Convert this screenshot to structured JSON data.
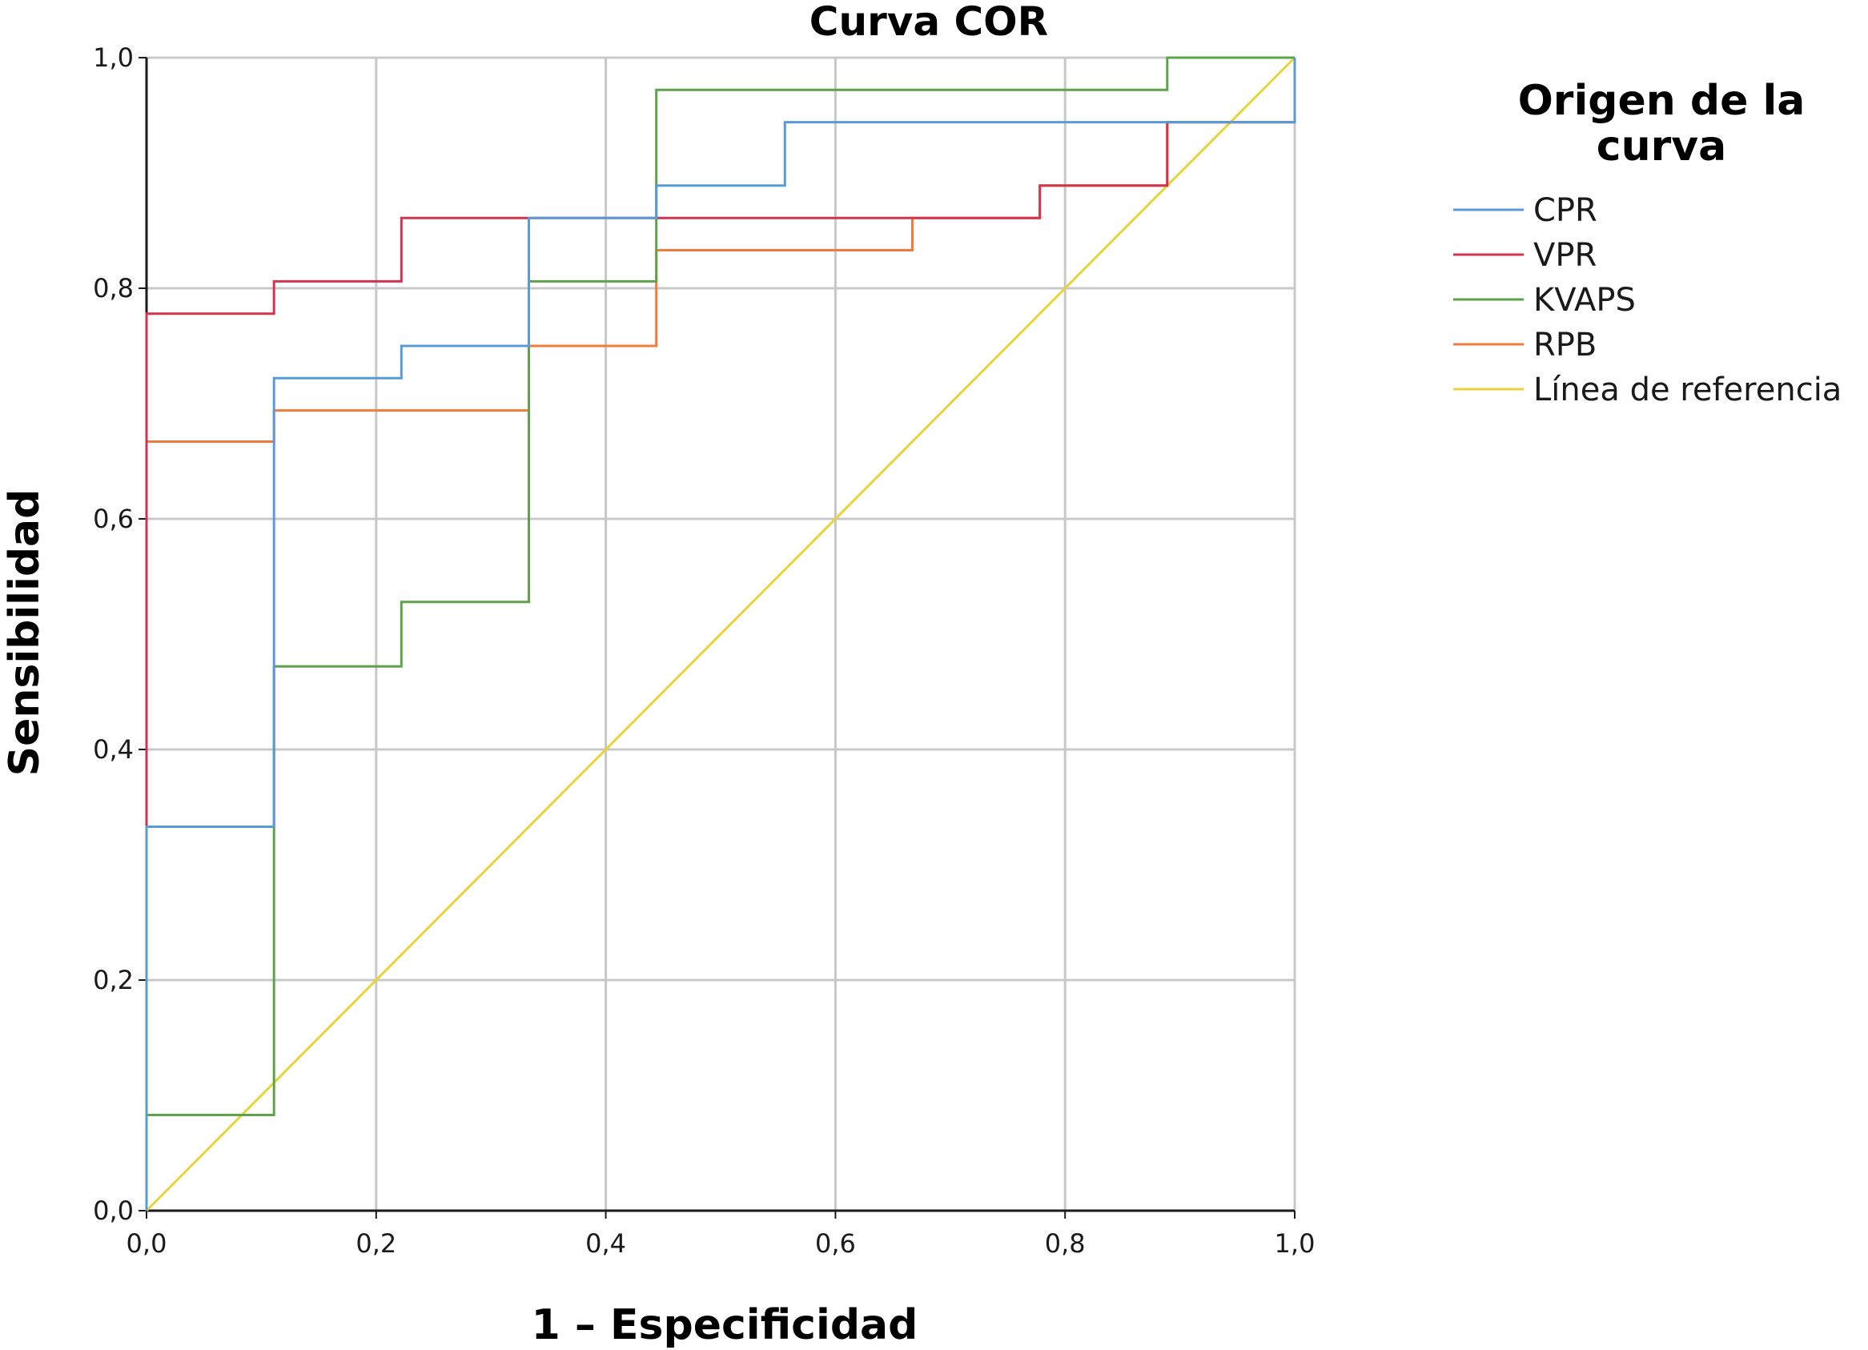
{
  "chart_data": {
    "type": "line",
    "title": "Curva COR",
    "xlabel": "1 – Especificidad",
    "ylabel": "Sensibilidad",
    "xlim": [
      0,
      1
    ],
    "ylim": [
      0,
      1
    ],
    "x_ticks": [
      "0,0",
      "0,2",
      "0,4",
      "0,6",
      "0,8",
      "1,0"
    ],
    "y_ticks": [
      "0,0",
      "0,2",
      "0,4",
      "0,6",
      "0,8",
      "1,0"
    ],
    "grid": true,
    "legend_title_lines": [
      "Origen de la",
      "curva"
    ],
    "legend_position": "right",
    "series": [
      {
        "name": "CPR",
        "color": "#5b9bd5",
        "points": [
          [
            0,
            0
          ],
          [
            0,
            0.333
          ],
          [
            0.111,
            0.333
          ],
          [
            0.111,
            0.722
          ],
          [
            0.222,
            0.722
          ],
          [
            0.222,
            0.75
          ],
          [
            0.333,
            0.75
          ],
          [
            0.333,
            0.861
          ],
          [
            0.444,
            0.861
          ],
          [
            0.444,
            0.889
          ],
          [
            0.556,
            0.889
          ],
          [
            0.556,
            0.944
          ],
          [
            1.0,
            0.944
          ],
          [
            1.0,
            1.0
          ]
        ]
      },
      {
        "name": "VPR",
        "color": "#d2334f",
        "points": [
          [
            0,
            0
          ],
          [
            0,
            0.778
          ],
          [
            0.111,
            0.778
          ],
          [
            0.111,
            0.806
          ],
          [
            0.222,
            0.806
          ],
          [
            0.222,
            0.861
          ],
          [
            0.778,
            0.861
          ],
          [
            0.778,
            0.889
          ],
          [
            0.889,
            0.889
          ],
          [
            0.889,
            0.944
          ],
          [
            1.0,
            0.944
          ],
          [
            1.0,
            1.0
          ]
        ]
      },
      {
        "name": "KVAPS",
        "color": "#5ea34a",
        "points": [
          [
            0,
            0
          ],
          [
            0,
            0.083
          ],
          [
            0.111,
            0.083
          ],
          [
            0.111,
            0.472
          ],
          [
            0.222,
            0.472
          ],
          [
            0.222,
            0.528
          ],
          [
            0.333,
            0.528
          ],
          [
            0.333,
            0.806
          ],
          [
            0.444,
            0.806
          ],
          [
            0.444,
            0.972
          ],
          [
            0.889,
            0.972
          ],
          [
            0.889,
            1.0
          ],
          [
            1.0,
            1.0
          ]
        ]
      },
      {
        "name": "RPB",
        "color": "#f07c3c",
        "points": [
          [
            0,
            0
          ],
          [
            0,
            0.667
          ],
          [
            0.111,
            0.667
          ],
          [
            0.111,
            0.694
          ],
          [
            0.333,
            0.694
          ],
          [
            0.333,
            0.75
          ],
          [
            0.444,
            0.75
          ],
          [
            0.444,
            0.833
          ],
          [
            0.667,
            0.833
          ],
          [
            0.667,
            0.861
          ],
          [
            0.778,
            0.861
          ],
          [
            0.778,
            0.889
          ],
          [
            0.889,
            0.889
          ],
          [
            0.889,
            0.944
          ],
          [
            1.0,
            0.944
          ],
          [
            1.0,
            1.0
          ]
        ]
      },
      {
        "name": "Línea de referencia",
        "color": "#e8d43a",
        "points": [
          [
            0,
            0
          ],
          [
            1,
            1
          ]
        ]
      }
    ]
  }
}
